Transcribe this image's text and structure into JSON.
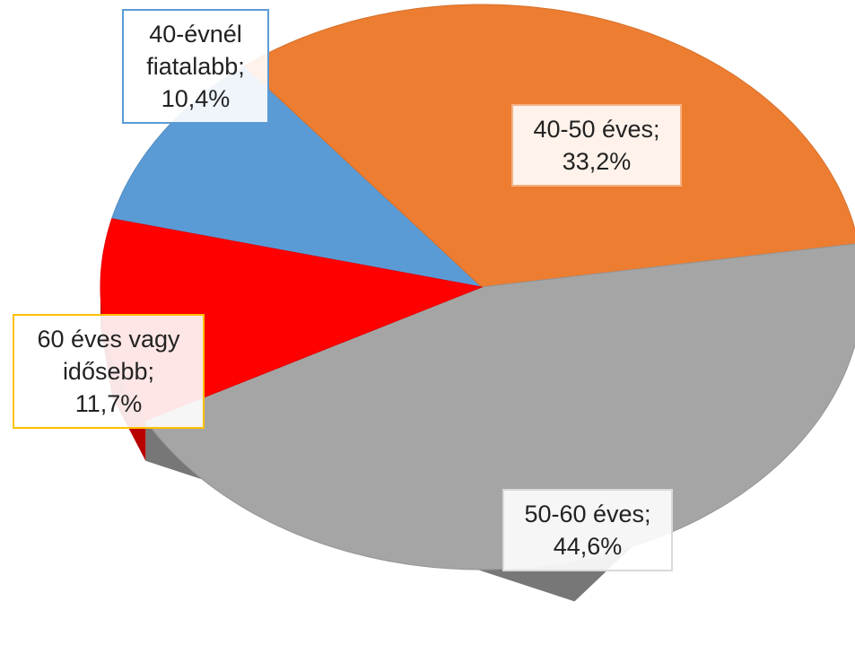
{
  "chart_data": {
    "type": "pie",
    "categories": [
      "40-évnél fiatalabb",
      "40-50 éves",
      "50-60 éves",
      "60 éves vagy idősebb"
    ],
    "values": [
      10.4,
      33.2,
      44.6,
      11.7
    ],
    "value_labels": [
      "10,4%",
      "33,2%",
      "44,6%",
      "11,7%"
    ],
    "label_separator": ";",
    "colors": [
      "#5b9bd5",
      "#ed7d31",
      "#a5a5a5",
      "#ff0000"
    ]
  }
}
